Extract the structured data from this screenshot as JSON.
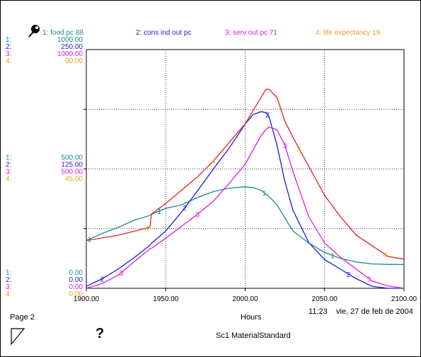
{
  "chart_data": {
    "type": "line",
    "x": [
      1900,
      1910,
      1920,
      1930,
      1940,
      1941,
      1950,
      1960,
      1970,
      1980,
      1990,
      2000,
      2005,
      2010,
      2013,
      2015,
      2020,
      2025,
      2030,
      2040,
      2050,
      2060,
      2070,
      2080,
      2090,
      2100
    ],
    "xlim": [
      1900,
      2100
    ],
    "x_ticks": [
      "1900.00",
      "1950.00",
      "2000.00",
      "2050.00",
      "2100.00"
    ],
    "xlabel": "Hours",
    "grid": true,
    "legend": [
      {
        "num": "1:",
        "text": "food pc 88",
        "color": "#1a8a8a"
      },
      {
        "num": "2:",
        "text": "cons ind out pc",
        "color": "#1a1ae0"
      },
      {
        "num": "3:",
        "text": "serv out pc 71",
        "color": "#e01ae0"
      },
      {
        "num": "4:",
        "text": "life expectancy 19",
        "color": "#e8a020"
      }
    ],
    "y_scales": [
      {
        "num": "1:",
        "color": "#1a8a8a",
        "top": "1000.00",
        "mid": "500.00",
        "bottom": "0.00",
        "max": 1000
      },
      {
        "num": "2:",
        "color": "#1a1ae0",
        "top": "250.00",
        "mid": "125.00",
        "bottom": "0.00",
        "max": 250
      },
      {
        "num": "3:",
        "color": "#e01ae0",
        "top": "1000.00",
        "mid": "500.00",
        "bottom": "0.00",
        "max": 1000
      },
      {
        "num": "4:",
        "color": "#e8a020",
        "top": "90.00",
        "mid": "45.00",
        "bottom": "0.00",
        "max": 90
      }
    ],
    "series": [
      {
        "num": "1",
        "color": "#1a8a8a",
        "marker_color": "#1a8a8a",
        "scale": 0,
        "values": [
          200,
          230,
          255,
          285,
          305,
          310,
          335,
          350,
          380,
          405,
          420,
          425,
          422,
          410,
          395,
          385,
          350,
          295,
          240,
          190,
          150,
          125,
          110,
          102,
          100,
          100
        ],
        "marker_x": [
          1902,
          1946,
          2012,
          2055
        ]
      },
      {
        "num": "2",
        "color": "#1a1ae0",
        "marker_color": "#1a1ae0",
        "scale": 1,
        "values": [
          2,
          10,
          20,
          32,
          45,
          47,
          60,
          80,
          102,
          125,
          147,
          172,
          182,
          185,
          184,
          180,
          150,
          112,
          82,
          48,
          30,
          20,
          10,
          2,
          0,
          0
        ],
        "marker_x": [
          1910,
          1962,
          2014,
          2065
        ]
      },
      {
        "num": "3",
        "color": "#e01ae0",
        "marker_color": "#e01ae0",
        "scale": 2,
        "values": [
          0,
          20,
          55,
          110,
          165,
          167,
          210,
          260,
          310,
          365,
          440,
          520,
          580,
          640,
          665,
          675,
          665,
          600,
          490,
          300,
          190,
          130,
          80,
          30,
          10,
          0
        ],
        "marker_x": [
          1922,
          1970,
          2025,
          2078
        ]
      },
      {
        "num": "4",
        "color": "#e62020",
        "marker_color": "#e8a020",
        "scale": 3,
        "values": [
          18,
          19,
          20,
          21.5,
          23,
          28,
          32,
          37,
          42,
          48,
          55,
          62,
          67,
          72,
          75,
          75,
          72,
          63,
          57,
          46,
          35,
          27,
          20,
          16,
          12,
          11
        ],
        "marker_x": [
          1938,
          1980,
          2034,
          2088
        ]
      }
    ]
  },
  "footer": {
    "page": "Page 2",
    "time": "11:23",
    "date": "vie, 27 de feb de 2004",
    "xlabel": "Hours",
    "model": "Sc1 MaterialStandard",
    "question_mark": "?"
  },
  "icons": {
    "pin": "pin-icon",
    "triangle": "down-triangle-icon",
    "help": "question-mark-icon"
  }
}
